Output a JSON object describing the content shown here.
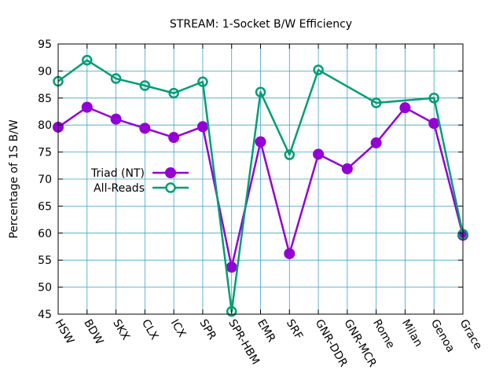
{
  "chart_data": {
    "type": "line",
    "title": "STREAM: 1-Socket B/W Efficiency",
    "xlabel": "",
    "ylabel": "Percentage of 1S B/W",
    "ylim": [
      45,
      95
    ],
    "yticks": [
      45,
      50,
      55,
      60,
      65,
      70,
      75,
      80,
      85,
      90,
      95
    ],
    "categories": [
      "HSW",
      "BDW",
      "SKX",
      "CLX",
      "ICX",
      "SPR",
      "SPR-HBM",
      "EMR",
      "SRF",
      "GNR-DDR",
      "GNR-MCR",
      "Rome",
      "Milan",
      "Genoa",
      "Grace"
    ],
    "grid": true,
    "legend_position": "left-middle",
    "series": [
      {
        "name": "Triad (NT)",
        "color": "#9400d3",
        "marker": "filled-circle",
        "values": [
          79.6,
          83.3,
          81.1,
          79.4,
          77.7,
          79.7,
          53.7,
          76.9,
          56.2,
          74.6,
          71.9,
          76.7,
          83.2,
          80.3,
          59.6
        ]
      },
      {
        "name": "All-Reads",
        "color": "#009e73",
        "marker": "open-circle",
        "values": [
          88.1,
          92.0,
          88.6,
          87.3,
          85.9,
          88.0,
          45.5,
          86.1,
          74.5,
          90.2,
          null,
          84.1,
          null,
          85.0,
          59.8
        ]
      }
    ]
  }
}
